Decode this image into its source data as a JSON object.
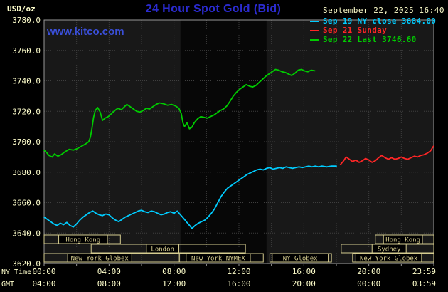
{
  "header": {
    "units": "USD/oz",
    "title": "24 Hour Spot Gold (Bid)",
    "datetime": "September 22, 2025 16:40",
    "watermark": "www.kitco.com"
  },
  "colors": {
    "background": "#000000",
    "cream": "#ffffcc",
    "title_blue": "#2b2bd0",
    "kitco_blue": "#3a4fd8",
    "session_khaki": "#d5cc8f",
    "grid": "#3f3f3f",
    "frame": "#999999",
    "plot_bg": "#181818",
    "shaded_band": "#070707"
  },
  "axes": {
    "y_ticks": [
      "3780.0",
      "3760.0",
      "3740.0",
      "3720.0",
      "3700.0",
      "3680.0",
      "3660.0",
      "3640.0",
      "3620.0"
    ],
    "x_ny_label": "NY Time",
    "x_gmt_label": "GMT",
    "ny_times": [
      "00:00",
      "04:00",
      "08:00",
      "12:00",
      "16:00",
      "20:00",
      "23:59"
    ],
    "gmt_times": [
      "04:00",
      "08:00",
      "12:00",
      "16:00",
      "20:00",
      "00:00",
      "03:59"
    ]
  },
  "sessions": [
    {
      "row": 0,
      "bar": [
        0,
        4.7
      ],
      "label": "Hong Kong",
      "label_span": [
        0.9,
        3.9
      ]
    },
    {
      "row": 0,
      "bar": [
        20.4,
        24
      ],
      "label": "Hong Kong",
      "label_span": [
        20.9,
        23.3
      ]
    },
    {
      "row": 1,
      "bar": [
        2.9,
        12.4
      ],
      "label": "London",
      "label_span": [
        6.3,
        8.3
      ]
    },
    {
      "row": 1,
      "bar": [
        18.3,
        24
      ],
      "label": "Sydney",
      "label_span": [
        20.2,
        22.3
      ]
    },
    {
      "row": 2,
      "bar": [
        0,
        8.33
      ],
      "label": "New York Globex",
      "label_span": [
        1.45,
        5.4
      ]
    },
    {
      "row": 2,
      "bar": [
        8.33,
        13.5
      ],
      "label": "New York NYMEX",
      "label_span": [
        8.75,
        12.7
      ]
    },
    {
      "row": 2,
      "bar": [
        13.9,
        17.7
      ],
      "label": "NY Globex",
      "label_span": [
        14.05,
        17.5
      ]
    },
    {
      "row": 2,
      "bar": [
        19.0,
        24
      ],
      "label": "New York Globex",
      "label_span": [
        19.2,
        23.25
      ]
    }
  ],
  "chart_data": {
    "type": "line",
    "title": "24 Hour Spot Gold (Bid)",
    "xlabel": "NY Time (hours 00:00-23:59)",
    "ylabel": "USD/oz",
    "ylim": [
      3620,
      3780
    ],
    "y_tick_step": 20,
    "x_range_hours": [
      0,
      24
    ],
    "grid": true,
    "legend_position": "top-right",
    "shaded_band_hours": [
      8.4,
      13.7
    ],
    "series": [
      {
        "id": "sep19-close",
        "name": "Sep 19 NY close 3684.00",
        "color": "#00ccff",
        "points": [
          [
            0,
            3650.5
          ],
          [
            0.2,
            3649
          ],
          [
            0.4,
            3647.5
          ],
          [
            0.6,
            3646
          ],
          [
            0.8,
            3645
          ],
          [
            1.0,
            3646.5
          ],
          [
            1.2,
            3645.5
          ],
          [
            1.4,
            3647
          ],
          [
            1.6,
            3645
          ],
          [
            1.8,
            3644
          ],
          [
            2.0,
            3646
          ],
          [
            2.2,
            3648.5
          ],
          [
            2.4,
            3650.5
          ],
          [
            2.6,
            3652
          ],
          [
            2.8,
            3653.5
          ],
          [
            3.0,
            3654.5
          ],
          [
            3.2,
            3653
          ],
          [
            3.4,
            3652
          ],
          [
            3.6,
            3651.5
          ],
          [
            3.8,
            3652.5
          ],
          [
            4.0,
            3652
          ],
          [
            4.2,
            3650
          ],
          [
            4.4,
            3648.5
          ],
          [
            4.6,
            3647.5
          ],
          [
            4.8,
            3649
          ],
          [
            5.0,
            3650.5
          ],
          [
            5.2,
            3651.5
          ],
          [
            5.4,
            3652.5
          ],
          [
            5.6,
            3653.5
          ],
          [
            5.8,
            3654.5
          ],
          [
            6.0,
            3655
          ],
          [
            6.2,
            3654
          ],
          [
            6.4,
            3653.5
          ],
          [
            6.6,
            3654.5
          ],
          [
            6.8,
            3654
          ],
          [
            7.0,
            3653
          ],
          [
            7.2,
            3652
          ],
          [
            7.4,
            3652.5
          ],
          [
            7.6,
            3653.5
          ],
          [
            7.8,
            3654
          ],
          [
            8.0,
            3653
          ],
          [
            8.2,
            3654.5
          ],
          [
            8.4,
            3652
          ],
          [
            8.6,
            3649.5
          ],
          [
            8.8,
            3647
          ],
          [
            9.0,
            3644.5
          ],
          [
            9.1,
            3643
          ],
          [
            9.3,
            3645
          ],
          [
            9.5,
            3646.5
          ],
          [
            9.7,
            3647.5
          ],
          [
            9.9,
            3648.5
          ],
          [
            10.1,
            3650.5
          ],
          [
            10.3,
            3653
          ],
          [
            10.5,
            3656
          ],
          [
            10.7,
            3660
          ],
          [
            10.9,
            3664
          ],
          [
            11.1,
            3667
          ],
          [
            11.3,
            3669.5
          ],
          [
            11.5,
            3671
          ],
          [
            11.7,
            3672.5
          ],
          [
            11.9,
            3674
          ],
          [
            12.1,
            3675.5
          ],
          [
            12.3,
            3677
          ],
          [
            12.5,
            3678.5
          ],
          [
            12.7,
            3679.5
          ],
          [
            12.9,
            3680.5
          ],
          [
            13.1,
            3681.5
          ],
          [
            13.3,
            3682
          ],
          [
            13.5,
            3681.5
          ],
          [
            13.7,
            3682.5
          ],
          [
            13.9,
            3683
          ],
          [
            14.1,
            3682
          ],
          [
            14.3,
            3682.5
          ],
          [
            14.5,
            3683
          ],
          [
            14.7,
            3682.5
          ],
          [
            14.9,
            3683.5
          ],
          [
            15.1,
            3683
          ],
          [
            15.3,
            3682.5
          ],
          [
            15.5,
            3683
          ],
          [
            15.7,
            3683.5
          ],
          [
            15.9,
            3683
          ],
          [
            16.1,
            3683.5
          ],
          [
            16.3,
            3684
          ],
          [
            16.5,
            3683.5
          ],
          [
            16.7,
            3684
          ],
          [
            16.9,
            3683.5
          ],
          [
            17.1,
            3684
          ],
          [
            17.4,
            3683.5
          ],
          [
            17.7,
            3684
          ],
          [
            18.0,
            3684
          ]
        ]
      },
      {
        "id": "sep21-sunday",
        "name": "Sep 21 Sunday",
        "color": "#ff2626",
        "points": [
          [
            18.25,
            3685
          ],
          [
            18.45,
            3687.5
          ],
          [
            18.6,
            3690
          ],
          [
            18.8,
            3688.5
          ],
          [
            19.0,
            3687
          ],
          [
            19.2,
            3688
          ],
          [
            19.4,
            3686.5
          ],
          [
            19.6,
            3687.5
          ],
          [
            19.8,
            3689
          ],
          [
            20.0,
            3688
          ],
          [
            20.2,
            3686.5
          ],
          [
            20.4,
            3687.5
          ],
          [
            20.6,
            3689.5
          ],
          [
            20.8,
            3691
          ],
          [
            21.0,
            3689.5
          ],
          [
            21.2,
            3688.5
          ],
          [
            21.4,
            3689.5
          ],
          [
            21.6,
            3688.5
          ],
          [
            21.8,
            3689
          ],
          [
            22.0,
            3690
          ],
          [
            22.2,
            3689
          ],
          [
            22.4,
            3688.5
          ],
          [
            22.6,
            3689.5
          ],
          [
            22.8,
            3690.5
          ],
          [
            23.0,
            3690
          ],
          [
            23.2,
            3691
          ],
          [
            23.4,
            3691.5
          ],
          [
            23.6,
            3692.5
          ],
          [
            23.8,
            3694
          ],
          [
            23.98,
            3697
          ]
        ]
      },
      {
        "id": "sep22-last",
        "name": "Sep 22 Last 3746.60",
        "color": "#00cc00",
        "points": [
          [
            0,
            3694.5
          ],
          [
            0.15,
            3693
          ],
          [
            0.3,
            3691
          ],
          [
            0.5,
            3690
          ],
          [
            0.65,
            3692
          ],
          [
            0.85,
            3690.5
          ],
          [
            1.05,
            3691.5
          ],
          [
            1.3,
            3693.5
          ],
          [
            1.55,
            3695
          ],
          [
            1.8,
            3694.5
          ],
          [
            2.05,
            3695.5
          ],
          [
            2.3,
            3697
          ],
          [
            2.55,
            3698.5
          ],
          [
            2.75,
            3700
          ],
          [
            2.85,
            3703
          ],
          [
            2.95,
            3709
          ],
          [
            3.05,
            3716
          ],
          [
            3.15,
            3720.5
          ],
          [
            3.3,
            3722.5
          ],
          [
            3.45,
            3719.5
          ],
          [
            3.6,
            3714
          ],
          [
            3.75,
            3715.5
          ],
          [
            3.95,
            3716.5
          ],
          [
            4.15,
            3718.5
          ],
          [
            4.35,
            3720.5
          ],
          [
            4.55,
            3722
          ],
          [
            4.75,
            3721
          ],
          [
            4.95,
            3723
          ],
          [
            5.1,
            3724.5
          ],
          [
            5.3,
            3723
          ],
          [
            5.5,
            3721.5
          ],
          [
            5.7,
            3720
          ],
          [
            5.9,
            3719.5
          ],
          [
            6.1,
            3720.5
          ],
          [
            6.3,
            3722
          ],
          [
            6.5,
            3721.5
          ],
          [
            6.7,
            3723
          ],
          [
            6.9,
            3724.5
          ],
          [
            7.1,
            3725.5
          ],
          [
            7.35,
            3725
          ],
          [
            7.6,
            3724
          ],
          [
            7.85,
            3724.5
          ],
          [
            8.1,
            3723.5
          ],
          [
            8.3,
            3722
          ],
          [
            8.45,
            3718.5
          ],
          [
            8.55,
            3712.5
          ],
          [
            8.65,
            3710
          ],
          [
            8.8,
            3712.5
          ],
          [
            8.95,
            3708.5
          ],
          [
            9.1,
            3709.5
          ],
          [
            9.25,
            3712.5
          ],
          [
            9.45,
            3715
          ],
          [
            9.65,
            3716.5
          ],
          [
            9.85,
            3716
          ],
          [
            10.05,
            3715.5
          ],
          [
            10.25,
            3716.5
          ],
          [
            10.45,
            3717.5
          ],
          [
            10.65,
            3719
          ],
          [
            10.85,
            3720.5
          ],
          [
            11.05,
            3721.5
          ],
          [
            11.25,
            3723.5
          ],
          [
            11.45,
            3726.5
          ],
          [
            11.65,
            3730
          ],
          [
            11.85,
            3732.5
          ],
          [
            12.05,
            3734.5
          ],
          [
            12.25,
            3736
          ],
          [
            12.45,
            3737.5
          ],
          [
            12.65,
            3736.5
          ],
          [
            12.85,
            3736
          ],
          [
            13.05,
            3737
          ],
          [
            13.25,
            3739
          ],
          [
            13.45,
            3741
          ],
          [
            13.65,
            3743
          ],
          [
            13.85,
            3744.5
          ],
          [
            14.05,
            3746
          ],
          [
            14.25,
            3747.5
          ],
          [
            14.45,
            3747
          ],
          [
            14.65,
            3746
          ],
          [
            14.85,
            3745.5
          ],
          [
            15.05,
            3744.5
          ],
          [
            15.25,
            3743.5
          ],
          [
            15.45,
            3745
          ],
          [
            15.65,
            3747
          ],
          [
            15.85,
            3747.5
          ],
          [
            16.05,
            3746.5
          ],
          [
            16.25,
            3746
          ],
          [
            16.45,
            3747
          ],
          [
            16.67,
            3746.6
          ]
        ]
      }
    ]
  }
}
